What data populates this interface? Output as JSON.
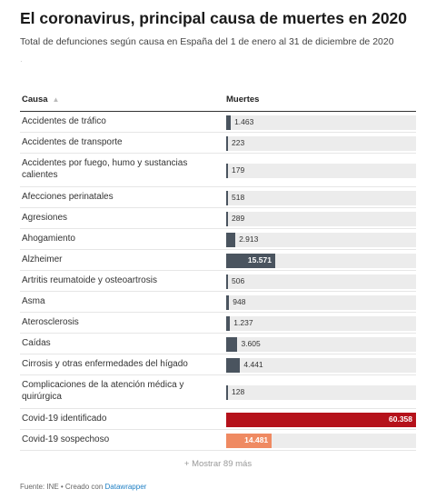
{
  "title": "El coronavirus, principal causa de muertes en 2020",
  "subtitle": "Total de defunciones según causa en España del 1 de enero al 31 de diciembre de 2020",
  "header": {
    "cause": "Causa",
    "sort_icon": "▲",
    "deaths": "Muertes"
  },
  "more_label": "+ Mostrar 89 más",
  "footer": {
    "prefix": "Fuente: INE • Creado con ",
    "tool": "Datawrapper"
  },
  "colors": {
    "bar": "#4a545f",
    "identified": "#b5121b",
    "suspected": "#ef8a62",
    "track": "#ececec"
  },
  "chart_data": {
    "type": "bar",
    "orientation": "horizontal",
    "title": "El coronavirus, principal causa de muertes en 2020",
    "xlim": [
      0,
      60358
    ],
    "grid": false,
    "categories": [
      "Accidentes de tráfico",
      "Accidentes de transporte",
      "Accidentes por fuego, humo y sustancias calientes",
      "Afecciones perinatales",
      "Agresiones",
      "Ahogamiento",
      "Alzheimer",
      "Artritis reumatoide y osteoartrosis",
      "Asma",
      "Aterosclerosis",
      "Caídas",
      "Cirrosis y otras enfermedades del hígado",
      "Complicaciones de la atención médica y quirúrgica",
      "Covid-19 identificado",
      "Covid-19 sospechoso"
    ],
    "values": [
      1463,
      223,
      179,
      518,
      289,
      2913,
      15571,
      506,
      948,
      1237,
      3605,
      4441,
      128,
      60358,
      14481
    ],
    "labels": [
      "1.463",
      "223",
      "179",
      "518",
      "289",
      "2.913",
      "15.571",
      "506",
      "948",
      "1.237",
      "3.605",
      "4.441",
      "128",
      "60.358",
      "14.481"
    ],
    "bar_colors": [
      "#4a545f",
      "#4a545f",
      "#4a545f",
      "#4a545f",
      "#4a545f",
      "#4a545f",
      "#4a545f",
      "#4a545f",
      "#4a545f",
      "#4a545f",
      "#4a545f",
      "#4a545f",
      "#4a545f",
      "#b5121b",
      "#ef8a62"
    ]
  }
}
